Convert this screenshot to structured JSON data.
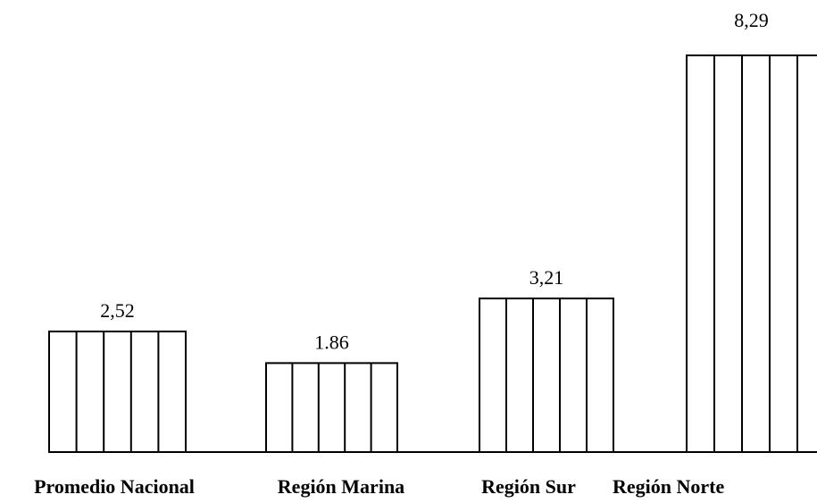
{
  "chart_data": {
    "type": "bar",
    "categories": [
      "Promedio Nacional",
      "Región Marina",
      "Región Sur",
      "Región Norte"
    ],
    "values": [
      2.52,
      1.86,
      3.21,
      8.29
    ],
    "value_labels": [
      "2,52",
      "1.86",
      "3,21",
      "8,29"
    ],
    "title": "",
    "xlabel": "",
    "ylabel": "",
    "ylim": [
      0,
      8.29
    ],
    "grid": false,
    "legend": "none",
    "bar_fill": "#ffffff",
    "bar_stroke": "#000000",
    "bar_pattern": "vertical-lines"
  }
}
